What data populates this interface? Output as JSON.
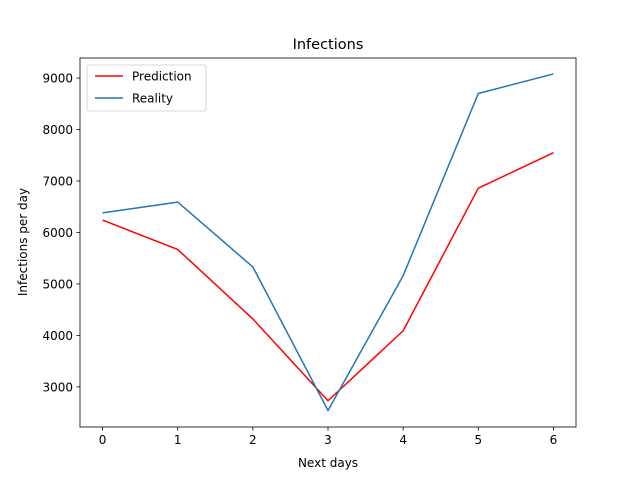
{
  "chart_data": {
    "type": "line",
    "title": "Infections",
    "xlabel": "Next days",
    "ylabel": "Infections per day",
    "x": [
      0,
      1,
      2,
      3,
      4,
      5,
      6
    ],
    "xlim": [
      -0.3,
      6.3
    ],
    "ylim": [
      2220,
      9390
    ],
    "xticks": [
      0,
      1,
      2,
      3,
      4,
      5,
      6
    ],
    "yticks": [
      3000,
      4000,
      5000,
      6000,
      7000,
      8000,
      9000
    ],
    "grid": false,
    "legend_position": "top-left",
    "series": [
      {
        "name": "Prediction",
        "color": "#ff0000",
        "values": [
          6240,
          5670,
          4320,
          2730,
          4090,
          6860,
          7550
        ]
      },
      {
        "name": "Reality",
        "color": "#1f77b4",
        "values": [
          6380,
          6590,
          5330,
          2540,
          5160,
          8700,
          9080
        ]
      }
    ]
  }
}
